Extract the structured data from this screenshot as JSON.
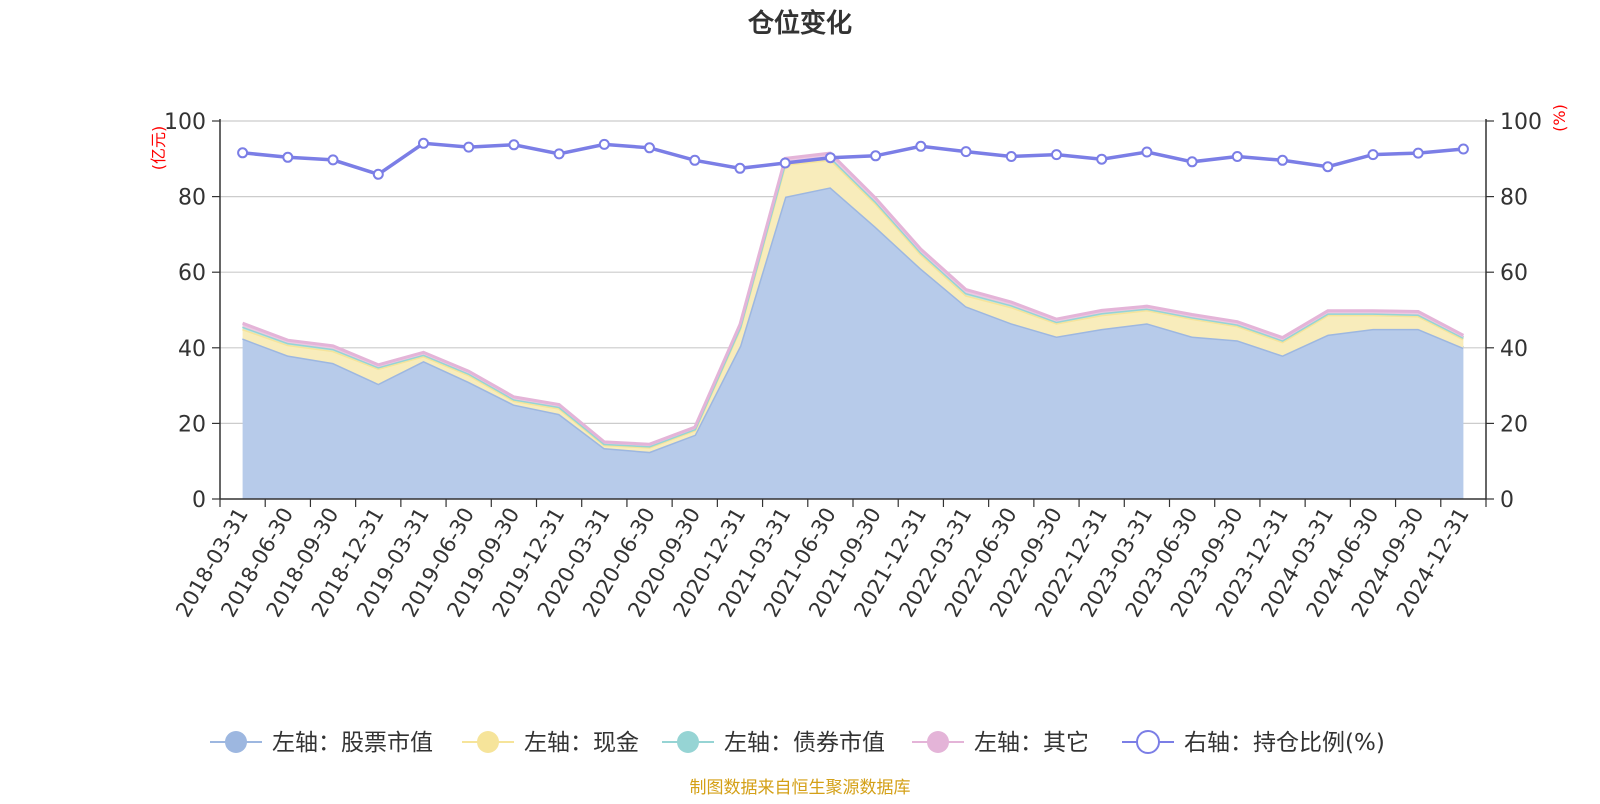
{
  "chart_data": {
    "type": "area",
    "title": "仓位变化",
    "left_axis_unit": "(亿元)",
    "right_axis_unit": "(%)",
    "source": "制图数据来自恒生聚源数据库",
    "y_left_lim": [
      0,
      100
    ],
    "y_right_lim": [
      0,
      100
    ],
    "y_ticks": [
      "0",
      "20",
      "40",
      "60",
      "80",
      "100"
    ],
    "grid": true,
    "legend_position": "bottom",
    "categories": [
      "2018-03-31",
      "2018-06-30",
      "2018-09-30",
      "2018-12-31",
      "2019-03-31",
      "2019-06-30",
      "2019-09-30",
      "2019-12-31",
      "2020-03-31",
      "2020-06-30",
      "2020-09-30",
      "2020-12-31",
      "2021-03-31",
      "2021-06-30",
      "2021-09-30",
      "2021-12-31",
      "2022-03-31",
      "2022-06-30",
      "2022-09-30",
      "2022-12-31",
      "2023-03-31",
      "2023-06-30",
      "2023-09-30",
      "2023-12-31",
      "2024-03-31",
      "2024-06-30",
      "2024-09-30",
      "2024-12-31"
    ],
    "series": [
      {
        "name": "左轴：股票市值",
        "axis": "left",
        "kind": "stacked-area",
        "color": "#9db7e0",
        "fill": "#b7cbea",
        "values": [
          42.5,
          38,
          36,
          30.5,
          36.5,
          31,
          25,
          22.5,
          13.5,
          12.5,
          17,
          40.5,
          80,
          82.5,
          72,
          61,
          51,
          46.5,
          43,
          45,
          46.5,
          43,
          42,
          38,
          43.5,
          45,
          45,
          40
        ]
      },
      {
        "name": "左轴：现金",
        "axis": "left",
        "kind": "stacked-area",
        "color": "#f6e49a",
        "fill": "#f8ecbb",
        "values": [
          2.5,
          2.8,
          3.2,
          4,
          1.3,
          1.8,
          1,
          1.5,
          0.8,
          1.2,
          1.2,
          4.5,
          8.5,
          7.3,
          6.2,
          3.8,
          2.9,
          4.3,
          3.5,
          3.7,
          3.5,
          4.7,
          3.8,
          3.6,
          5.2,
          3.7,
          3.4,
          2.3
        ]
      },
      {
        "name": "左轴：债券市值",
        "axis": "left",
        "kind": "stacked-area",
        "color": "#96d4d4",
        "fill": "#c3e6e6",
        "values": [
          0.6,
          0.5,
          0.5,
          0.4,
          0.4,
          0.4,
          0.4,
          0.4,
          0.3,
          0.3,
          0.3,
          0.4,
          0.6,
          0.6,
          0.5,
          0.5,
          0.6,
          0.5,
          0.4,
          0.5,
          0.4,
          0.4,
          0.4,
          0.4,
          0.4,
          0.4,
          0.4,
          0.4
        ]
      },
      {
        "name": "左轴：其它",
        "axis": "left",
        "kind": "stacked-area",
        "color": "#e4b4d8",
        "fill": "#ecc8e2",
        "values": [
          0.9,
          0.7,
          0.8,
          0.6,
          0.6,
          0.6,
          0.6,
          0.6,
          0.5,
          0.5,
          0.5,
          0.8,
          1,
          1.1,
          0.9,
          0.8,
          0.9,
          0.8,
          0.7,
          0.7,
          0.6,
          0.7,
          0.7,
          0.7,
          0.7,
          0.7,
          0.8,
          0.6
        ]
      },
      {
        "name": "右轴：持仓比例(%)",
        "axis": "right",
        "kind": "line",
        "color": "#7b7ee6",
        "values": [
          91.6,
          90.4,
          89.7,
          85.9,
          94.1,
          93.1,
          93.7,
          91.3,
          93.8,
          92.9,
          89.6,
          87.5,
          88.9,
          90.3,
          90.8,
          93.3,
          91.9,
          90.6,
          91.1,
          89.9,
          91.8,
          89.2,
          90.6,
          89.6,
          87.9,
          91.1,
          91.5,
          92.6
        ]
      }
    ]
  }
}
